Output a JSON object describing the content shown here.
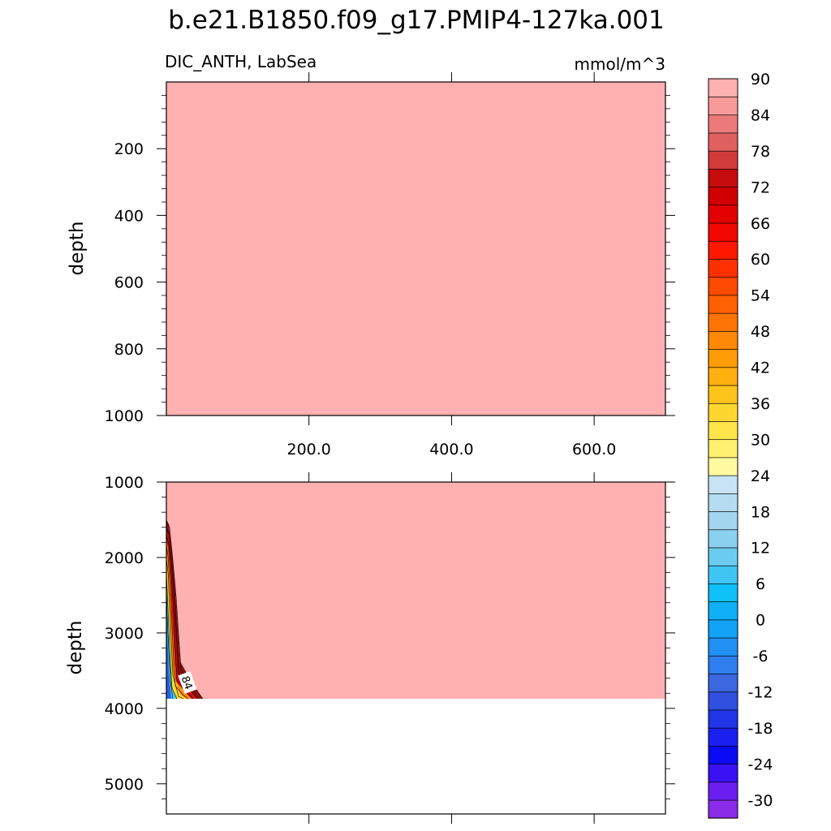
{
  "chart_data": {
    "type": "heatmap",
    "title": "b.e21.B1850.f09_g17.PMIP4-127ka.001",
    "subtitle_left": "DIC_ANTH, LabSea",
    "subtitle_right": "mmol/m^3",
    "panels": [
      {
        "name": "upper",
        "ylabel": "depth",
        "ylim": [
          0,
          1000
        ],
        "y_reversed": true,
        "yticks": [
          200,
          400,
          600,
          800,
          1000
        ],
        "xlim": [
          0,
          700
        ],
        "xticks": [
          200,
          400,
          600
        ],
        "xtick_labels": [
          "200.0",
          "400.0",
          "600.0"
        ],
        "fill_value": 92,
        "contour_labels": []
      },
      {
        "name": "lower",
        "ylabel": "depth",
        "ylim": [
          1000,
          5400
        ],
        "y_reversed": true,
        "yticks": [
          1000,
          2000,
          3000,
          4000,
          5000
        ],
        "xlim": [
          0,
          700
        ],
        "xticks": [
          200,
          400,
          600
        ],
        "xtick_labels": [],
        "fill_value": 92,
        "data_bottom_depth": 3870,
        "contour_labels": [
          {
            "text": "84",
            "x": 30,
            "y": 3600
          }
        ]
      }
    ],
    "colorbar": {
      "levels": [
        -30,
        -27,
        -24,
        -21,
        -18,
        -15,
        -12,
        -9,
        -6,
        -3,
        0,
        3,
        6,
        9,
        12,
        15,
        18,
        21,
        24,
        27,
        30,
        33,
        36,
        39,
        42,
        45,
        48,
        51,
        54,
        57,
        60,
        63,
        66,
        69,
        72,
        75,
        78,
        81,
        84,
        87,
        90
      ],
      "labels": [
        "-30",
        "-24",
        "-18",
        "-12",
        "-6",
        "0",
        "6",
        "12",
        "18",
        "24",
        "30",
        "36",
        "42",
        "48",
        "54",
        "60",
        "66",
        "72",
        "78",
        "84",
        "90"
      ],
      "colors": [
        "#8a2be8",
        "#6a1ff0",
        "#3a10f5",
        "#0a0af5",
        "#1a20f0",
        "#2035e8",
        "#3050e0",
        "#3b68e0",
        "#2e7ef0",
        "#2090f5",
        "#12a2f8",
        "#10b0f8",
        "#10c0f8",
        "#40c6f5",
        "#6ccbf0",
        "#8ad0ef",
        "#a2d6ee",
        "#b5dcf0",
        "#c8e4f4",
        "#fffaa0",
        "#fff070",
        "#ffe44a",
        "#ffd630",
        "#ffc41c",
        "#ffb010",
        "#ff9c08",
        "#ff8806",
        "#ff7404",
        "#ff6002",
        "#ff4a01",
        "#ff3000",
        "#ff1800",
        "#f20800",
        "#e20000",
        "#d00000",
        "#c60c0c",
        "#d23a3a",
        "#e06060",
        "#ec7a7a",
        "#f89a9a",
        "#ffb0b0"
      ]
    }
  }
}
